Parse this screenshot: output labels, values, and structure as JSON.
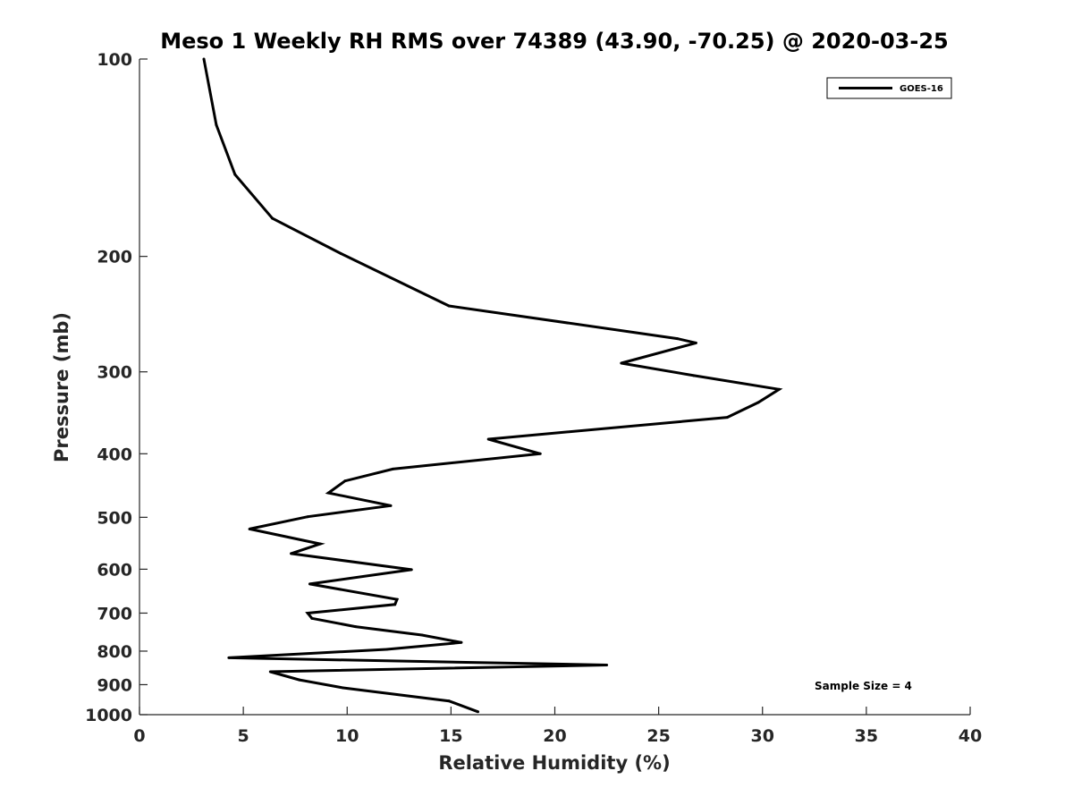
{
  "chart_data": {
    "type": "line",
    "title": "Meso 1 Weekly RH RMS over 74389 (43.90, -70.25) @ 2020-03-25",
    "xlabel": "Relative Humidity (%)",
    "ylabel": "Pressure (mb)",
    "xlim": [
      0,
      40
    ],
    "ylim": [
      100,
      1000
    ],
    "y_scale": "log",
    "y_inverted": true,
    "x_ticks": [
      0,
      5,
      10,
      15,
      20,
      25,
      30,
      35,
      40
    ],
    "y_ticks": [
      100,
      200,
      300,
      400,
      500,
      600,
      700,
      800,
      900,
      1000
    ],
    "grid": false,
    "legend_position": "top-right",
    "annotation": "Sample Size = 4",
    "series": [
      {
        "name": "GOES-16",
        "color": "#000000",
        "points": [
          {
            "x": 3.1,
            "y": 100
          },
          {
            "x": 3.7,
            "y": 126
          },
          {
            "x": 4.6,
            "y": 150
          },
          {
            "x": 6.4,
            "y": 175
          },
          {
            "x": 9.7,
            "y": 198
          },
          {
            "x": 14.9,
            "y": 238
          },
          {
            "x": 25.9,
            "y": 267
          },
          {
            "x": 26.8,
            "y": 271
          },
          {
            "x": 23.2,
            "y": 291
          },
          {
            "x": 26.7,
            "y": 304
          },
          {
            "x": 30.8,
            "y": 319
          },
          {
            "x": 29.8,
            "y": 334
          },
          {
            "x": 28.3,
            "y": 352
          },
          {
            "x": 16.8,
            "y": 380
          },
          {
            "x": 19.3,
            "y": 400
          },
          {
            "x": 12.2,
            "y": 422
          },
          {
            "x": 9.9,
            "y": 440
          },
          {
            "x": 9.1,
            "y": 459
          },
          {
            "x": 12.1,
            "y": 480
          },
          {
            "x": 8.1,
            "y": 499
          },
          {
            "x": 5.3,
            "y": 521
          },
          {
            "x": 8.7,
            "y": 549
          },
          {
            "x": 7.3,
            "y": 568
          },
          {
            "x": 13.1,
            "y": 601
          },
          {
            "x": 8.2,
            "y": 632
          },
          {
            "x": 12.4,
            "y": 667
          },
          {
            "x": 12.3,
            "y": 679
          },
          {
            "x": 8.1,
            "y": 700
          },
          {
            "x": 8.3,
            "y": 713
          },
          {
            "x": 10.4,
            "y": 734
          },
          {
            "x": 13.6,
            "y": 756
          },
          {
            "x": 15.5,
            "y": 776
          },
          {
            "x": 11.9,
            "y": 795
          },
          {
            "x": 4.3,
            "y": 819
          },
          {
            "x": 22.5,
            "y": 840
          },
          {
            "x": 6.3,
            "y": 860
          },
          {
            "x": 7.7,
            "y": 885
          },
          {
            "x": 9.8,
            "y": 910
          },
          {
            "x": 14.9,
            "y": 953
          },
          {
            "x": 16.3,
            "y": 990
          }
        ]
      }
    ]
  }
}
